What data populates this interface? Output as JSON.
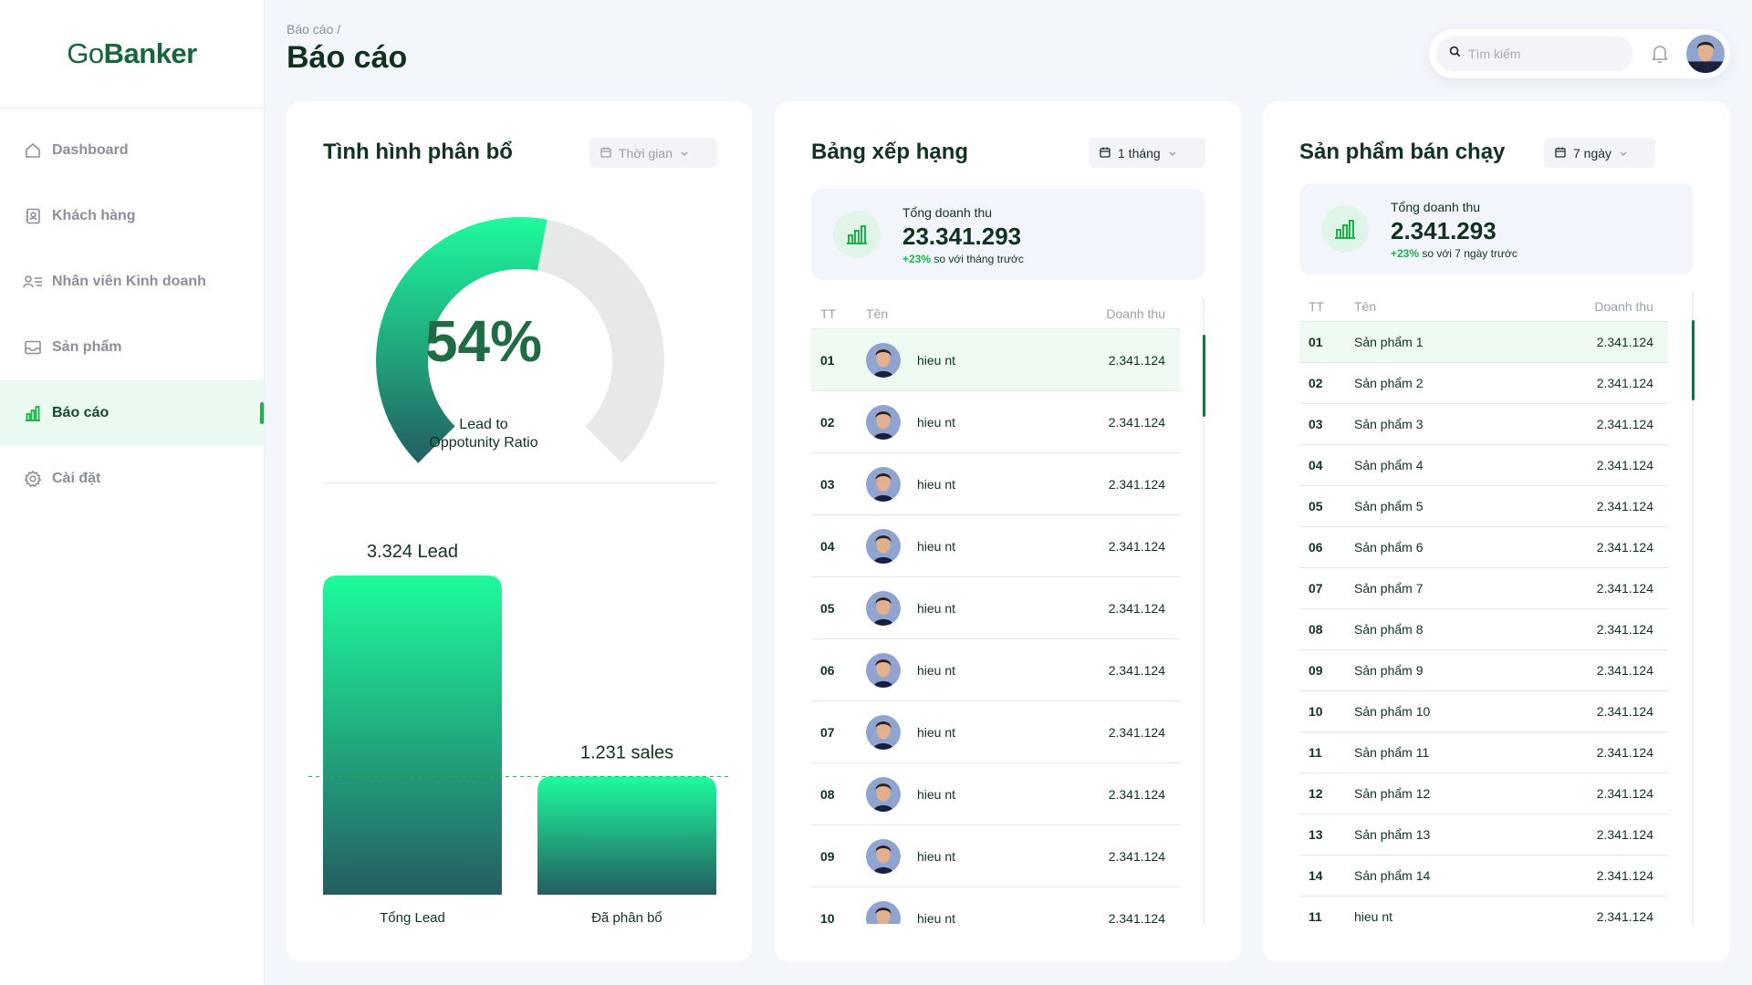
{
  "app": {
    "logo_light": "Go",
    "logo_bold": "Banker"
  },
  "sidebar": {
    "items": [
      {
        "label": "Dashboard",
        "icon": "home-icon"
      },
      {
        "label": "Khách hàng",
        "icon": "contact-book-icon"
      },
      {
        "label": "Nhân viên Kinh doanh",
        "icon": "user-list-icon"
      },
      {
        "label": "Sản phẩm",
        "icon": "mail-box-icon"
      },
      {
        "label": "Báo cáo",
        "icon": "bar-chart-icon",
        "active": true
      },
      {
        "label": "Cài đặt",
        "icon": "gear-icon"
      }
    ]
  },
  "header": {
    "breadcrumb": "Báo cáo /",
    "title": "Báo cáo",
    "search_placeholder": "Tìm kiếm"
  },
  "colors": {
    "brand": "#16653b",
    "accent": "#19b34a",
    "gradient_top": "#1dfb9c",
    "gradient_bottom": "#245e62",
    "gauge_rest": "#e6e9e7"
  },
  "allocation": {
    "title": "Tình hình phân bổ",
    "filter": "Thời gian",
    "gauge_value": "54%",
    "gauge_percent": 54,
    "gauge_label_1": "Lead to",
    "gauge_label_2": "Oppotunity Ratio"
  },
  "chart_data": {
    "type": "bar",
    "categories": [
      "Tổng Lead",
      "Đã phân bổ"
    ],
    "values": [
      3324,
      1231
    ],
    "data_labels": [
      "3.324 Lead",
      "1.231 sales"
    ],
    "reference_line": 1231
  },
  "ranking": {
    "title": "Bảng xếp hạng",
    "filter": "1 tháng",
    "summary": {
      "label": "Tổng doanh thu",
      "value": "23.341.293",
      "change": "+23%",
      "change_text": "so với tháng trước"
    },
    "columns": [
      "TT",
      "Tên",
      "Doanh thu"
    ],
    "rows": [
      {
        "rank": "01",
        "name": "hieu nt",
        "revenue": "2.341.124"
      },
      {
        "rank": "02",
        "name": "hieu nt",
        "revenue": "2.341.124"
      },
      {
        "rank": "03",
        "name": "hieu nt",
        "revenue": "2.341.124"
      },
      {
        "rank": "04",
        "name": "hieu nt",
        "revenue": "2.341.124"
      },
      {
        "rank": "05",
        "name": "hieu nt",
        "revenue": "2.341.124"
      },
      {
        "rank": "06",
        "name": "hieu nt",
        "revenue": "2.341.124"
      },
      {
        "rank": "07",
        "name": "hieu nt",
        "revenue": "2.341.124"
      },
      {
        "rank": "08",
        "name": "hieu nt",
        "revenue": "2.341.124"
      },
      {
        "rank": "09",
        "name": "hieu nt",
        "revenue": "2.341.124"
      },
      {
        "rank": "10",
        "name": "hieu nt",
        "revenue": "2.341.124"
      }
    ]
  },
  "bestsellers": {
    "title": "Sản phẩm bán chạy",
    "filter": "7 ngày",
    "summary": {
      "label": "Tổng doanh thu",
      "value": "2.341.293",
      "change": "+23%",
      "change_text": "so với 7 ngày trước"
    },
    "columns": [
      "TT",
      "Tên",
      "Doanh thu"
    ],
    "rows": [
      {
        "rank": "01",
        "name": "Sản phẩm 1",
        "revenue": "2.341.124"
      },
      {
        "rank": "02",
        "name": "Sản phẩm 2",
        "revenue": "2.341.124"
      },
      {
        "rank": "03",
        "name": "Sản phẩm 3",
        "revenue": "2.341.124"
      },
      {
        "rank": "04",
        "name": "Sản phẩm 4",
        "revenue": "2.341.124"
      },
      {
        "rank": "05",
        "name": "Sản phẩm 5",
        "revenue": "2.341.124"
      },
      {
        "rank": "06",
        "name": "Sản phẩm 6",
        "revenue": "2.341.124"
      },
      {
        "rank": "07",
        "name": "Sản phẩm 7",
        "revenue": "2.341.124"
      },
      {
        "rank": "08",
        "name": "Sản phẩm 8",
        "revenue": "2.341.124"
      },
      {
        "rank": "09",
        "name": "Sản phẩm 9",
        "revenue": "2.341.124"
      },
      {
        "rank": "10",
        "name": "Sản phẩm 10",
        "revenue": "2.341.124"
      },
      {
        "rank": "11",
        "name": "Sản phẩm 11",
        "revenue": "2.341.124"
      },
      {
        "rank": "12",
        "name": "Sản phẩm 12",
        "revenue": "2.341.124"
      },
      {
        "rank": "13",
        "name": "Sản phẩm 13",
        "revenue": "2.341.124"
      },
      {
        "rank": "14",
        "name": "Sản phẩm 14",
        "revenue": "2.341.124"
      },
      {
        "rank": "11",
        "name": "hieu nt",
        "revenue": "2.341.124"
      }
    ]
  }
}
